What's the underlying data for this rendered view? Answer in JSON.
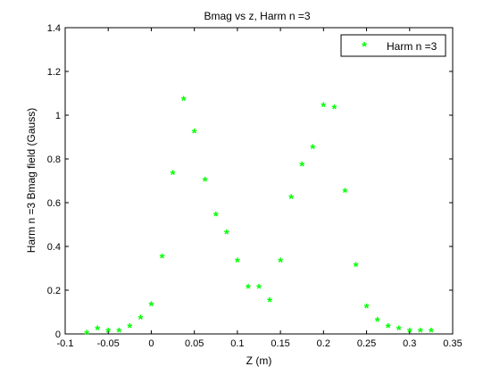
{
  "chart_data": {
    "type": "scatter",
    "title": "Bmag vs z, Harm n =3",
    "xlabel": "Z (m)",
    "ylabel": "Harm n =3 Bmag field (Gauss)",
    "xlim": [
      -0.1,
      0.35
    ],
    "ylim": [
      0,
      1.4
    ],
    "xticks": [
      -0.1,
      -0.05,
      0,
      0.05,
      0.1,
      0.15,
      0.2,
      0.25,
      0.3,
      0.35
    ],
    "xtick_labels": [
      "-0.1",
      "-0.05",
      "0",
      "0.05",
      "0.1",
      "0.15",
      "0.2",
      "0.25",
      "0.3",
      "0.35"
    ],
    "yticks": [
      0,
      0.2,
      0.4,
      0.6,
      0.8,
      1,
      1.2,
      1.4
    ],
    "ytick_labels": [
      "0",
      "0.2",
      "0.4",
      "0.6",
      "0.8",
      "1",
      "1.2",
      "1.4"
    ],
    "grid": false,
    "legend_position": "top-right",
    "series": [
      {
        "name": "Harm n =3",
        "color": "#00ff00",
        "marker": "*",
        "x": [
          -0.075,
          -0.0625,
          -0.05,
          -0.0375,
          -0.025,
          -0.0125,
          0,
          0.0125,
          0.025,
          0.0375,
          0.05,
          0.0625,
          0.075,
          0.0875,
          0.1,
          0.1125,
          0.125,
          0.1375,
          0.15,
          0.1625,
          0.175,
          0.1875,
          0.2,
          0.2125,
          0.225,
          0.2375,
          0.25,
          0.2625,
          0.275,
          0.2875,
          0.3,
          0.3125,
          0.325
        ],
        "y": [
          0.0,
          0.02,
          0.01,
          0.01,
          0.03,
          0.07,
          0.13,
          0.35,
          0.73,
          1.07,
          0.92,
          0.7,
          0.54,
          0.46,
          0.33,
          0.21,
          0.21,
          0.15,
          0.33,
          0.62,
          0.77,
          0.85,
          1.04,
          1.03,
          0.65,
          0.31,
          0.12,
          0.06,
          0.03,
          0.02,
          0.01,
          0.01,
          0.01
        ]
      }
    ]
  }
}
